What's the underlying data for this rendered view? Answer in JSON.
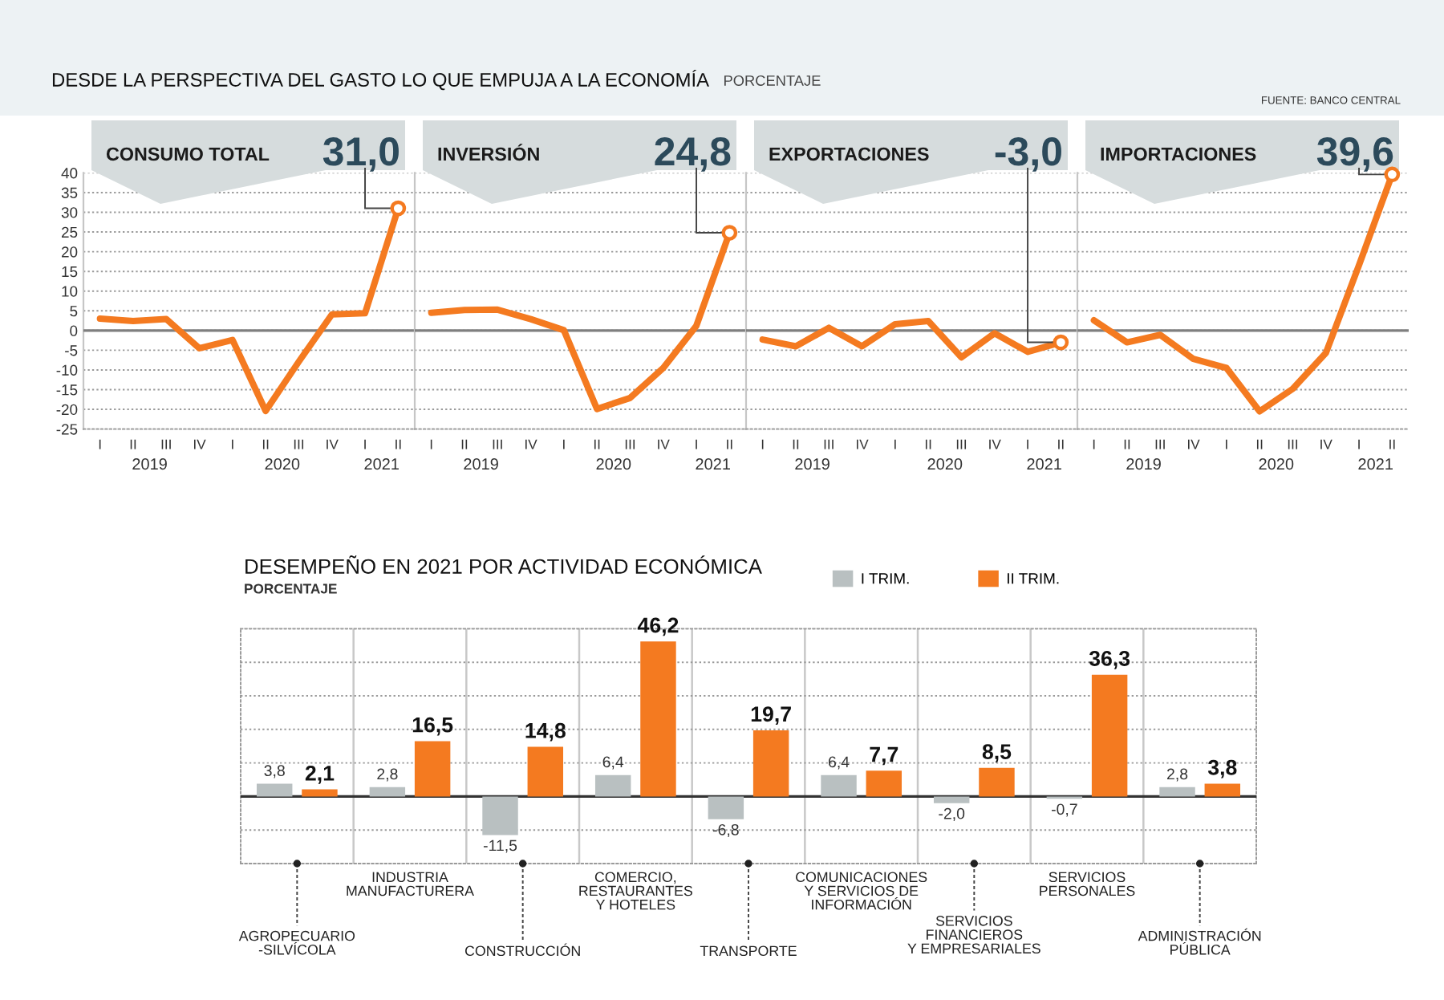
{
  "chart_data": [
    {
      "type": "other",
      "title": "DESDE LA PERSPECTIVA DEL GASTO LO QUE EMPUJA A LA ECONOMÍA",
      "subtitle": "PORCENTAJE",
      "annotations": [
        "FUENTE: BANCO CENTRAL"
      ]
    },
    {
      "type": "line",
      "title": "CONSUMO TOTAL",
      "categories": [
        "I",
        "II",
        "III",
        "IV",
        "I",
        "II",
        "III",
        "IV",
        "I",
        "II"
      ],
      "values": [
        3.0,
        2.4,
        2.9,
        -4.5,
        -2.4,
        -20.4,
        -7.9,
        4.1,
        4.4,
        31.0
      ],
      "value_labels": [
        null,
        null,
        null,
        null,
        null,
        null,
        null,
        null,
        null,
        "31,0"
      ],
      "color": "#f47a20",
      "ylim": [
        -25,
        40
      ],
      "yticks": [
        -25,
        -20,
        -15,
        -10,
        -5,
        0,
        5,
        10,
        15,
        20,
        25,
        30,
        35,
        40
      ],
      "grid": "y",
      "ref_lines": [
        {
          "axis": "y",
          "value": 0,
          "color": "#7f7f7f"
        }
      ],
      "annotations": [
        "2019",
        "2020",
        "2021"
      ]
    },
    {
      "type": "line",
      "title": "INVERSIÓN",
      "categories": [
        "I",
        "II",
        "III",
        "IV",
        "I",
        "II",
        "III",
        "IV",
        "I",
        "II"
      ],
      "values": [
        4.5,
        5.2,
        5.3,
        2.9,
        0.1,
        -19.9,
        -17.1,
        -9.5,
        1.2,
        24.8
      ],
      "value_labels": [
        null,
        null,
        null,
        null,
        null,
        null,
        null,
        null,
        null,
        "24,8"
      ],
      "color": "#f47a20",
      "ylim": [
        -25,
        40
      ],
      "yticks": [
        -25,
        -20,
        -15,
        -10,
        -5,
        0,
        5,
        10,
        15,
        20,
        25,
        30,
        35,
        40
      ],
      "grid": "y",
      "tick_labels": "x",
      "ref_lines": [
        {
          "axis": "y",
          "value": 0,
          "color": "#7f7f7f"
        }
      ],
      "annotations": [
        "2019",
        "2020",
        "2021"
      ]
    },
    {
      "type": "line",
      "title": "EXPORTACIONES",
      "categories": [
        "I",
        "II",
        "III",
        "IV",
        "I",
        "II",
        "III",
        "IV",
        "I",
        "II"
      ],
      "values": [
        -2.3,
        -4.0,
        0.7,
        -4.0,
        1.6,
        2.4,
        -6.8,
        -0.7,
        -5.4,
        -3.0
      ],
      "value_labels": [
        null,
        null,
        null,
        null,
        null,
        null,
        null,
        null,
        null,
        "-3,0"
      ],
      "color": "#f47a20",
      "ylim": [
        -25,
        40
      ],
      "yticks": [
        -25,
        -20,
        -15,
        -10,
        -5,
        0,
        5,
        10,
        15,
        20,
        25,
        30,
        35,
        40
      ],
      "grid": "y",
      "tick_labels": "x",
      "ref_lines": [
        {
          "axis": "y",
          "value": 0,
          "color": "#7f7f7f"
        }
      ],
      "annotations": [
        "2019",
        "2020",
        "2021"
      ]
    },
    {
      "type": "line",
      "title": "IMPORTACIONES",
      "categories": [
        "I",
        "II",
        "III",
        "IV",
        "I",
        "II",
        "III",
        "IV",
        "I",
        "II"
      ],
      "values": [
        2.6,
        -3.0,
        -1.1,
        -7.2,
        -9.5,
        -20.5,
        -14.8,
        -5.7,
        16.6,
        39.6
      ],
      "value_labels": [
        null,
        null,
        null,
        null,
        null,
        null,
        null,
        null,
        null,
        "39,6"
      ],
      "color": "#f47a20",
      "ylim": [
        -25,
        40
      ],
      "yticks": [
        -25,
        -20,
        -15,
        -10,
        -5,
        0,
        5,
        10,
        15,
        20,
        25,
        30,
        35,
        40
      ],
      "grid": "y",
      "tick_labels": "x",
      "ref_lines": [
        {
          "axis": "y",
          "value": 0,
          "color": "#7f7f7f"
        }
      ],
      "annotations": [
        "2019",
        "2020",
        "2021"
      ]
    },
    {
      "type": "bar",
      "title": "DESEMPEÑO EN 2021 POR ACTIVIDAD ECONÓMICA",
      "subtitle": "PORCENTAJE",
      "categories": [
        "AGROPECUARIO\n-SILVÍCOLA",
        "INDUSTRIA\nMANUFACTURERA",
        "CONSTRUCCIÓN",
        "COMERCIO,\nRESTAURANTES\nY HOTELES",
        "TRANSPORTE",
        "COMUNICACIONES\nY SERVICIOS DE\nINFORMACIÓN",
        "SERVICIOS\nFINANCIEROS\nY EMPRESARIALES",
        "SERVICIOS\nPERSONALES",
        "ADMINISTRACIÓN\nPÚBLICA"
      ],
      "series": [
        {
          "name": "I TRIM.",
          "color": "#b9c0c1",
          "values": [
            3.8,
            2.8,
            -11.5,
            6.4,
            -6.8,
            6.4,
            -2.0,
            -0.7,
            2.8
          ],
          "value_labels": [
            "3,8",
            "2,8",
            "-11,5",
            "6,4",
            "-6,8",
            "6,4",
            "-2,0",
            "-0,7",
            "2,8"
          ]
        },
        {
          "name": "II TRIM.",
          "color": "#f47a20",
          "values": [
            2.1,
            16.5,
            14.8,
            46.2,
            19.7,
            7.7,
            8.5,
            36.3,
            3.8
          ],
          "value_labels": [
            "2,1",
            "16,5",
            "14,8",
            "46,2",
            "19,7",
            "7,7",
            "8,5",
            "36,3",
            "3,8"
          ]
        }
      ],
      "ylim": [
        -20,
        50
      ],
      "yticks": [
        {
          "value": -20,
          "label": null
        },
        {
          "value": -10,
          "label": null
        },
        {
          "value": 0,
          "label": null
        },
        {
          "value": 10,
          "label": null
        },
        {
          "value": 20,
          "label": null
        },
        {
          "value": 30,
          "label": null
        },
        {
          "value": 40,
          "label": null
        },
        {
          "value": 50,
          "label": null
        }
      ],
      "tick_labels": "x",
      "grid": true,
      "legend": "top right",
      "ref_lines": [
        {
          "axis": "y",
          "value": 0,
          "color": "#333333"
        }
      ]
    }
  ]
}
